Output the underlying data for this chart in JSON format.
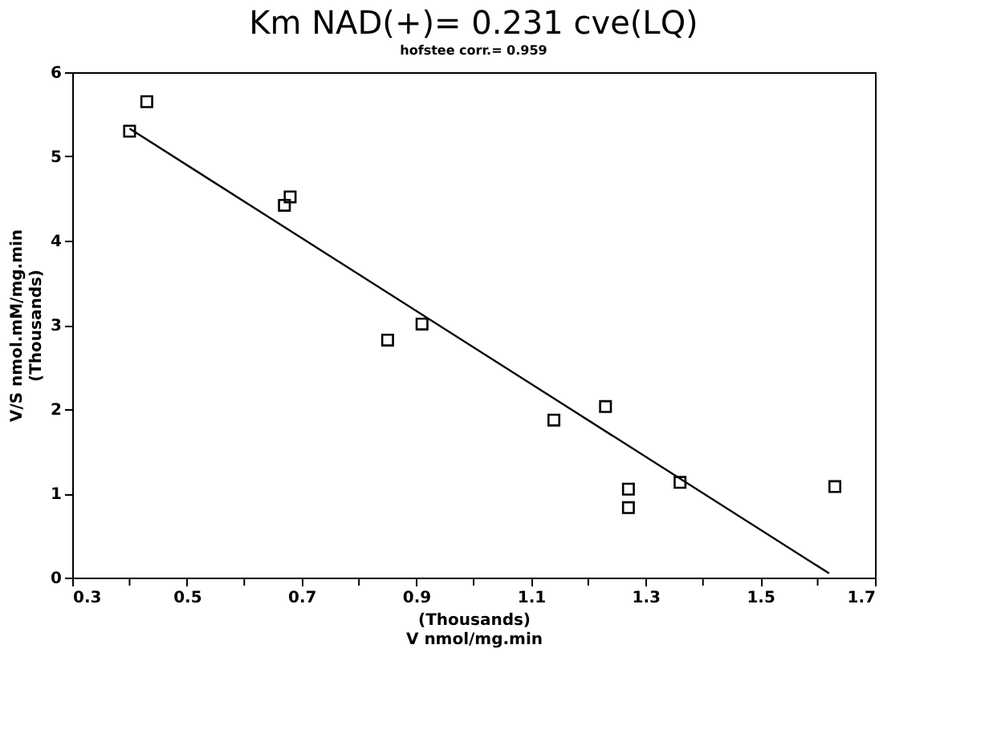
{
  "chart_data": {
    "type": "scatter",
    "title": "Km NAD(+)= 0.231 cve(LQ)",
    "subtitle": "hofstee corr.= 0.959",
    "xlabel": "(Thousands)\nV nmol/mg.min",
    "ylabel": "V/S nmol.mM/mg.min\n(Thousands)",
    "series": [
      {
        "color": "#000000",
        "marker": "square",
        "x": [
          0.4,
          0.43,
          0.67,
          0.68,
          0.85,
          0.91,
          1.14,
          1.23,
          1.27,
          1.27,
          1.36,
          1.63
        ],
        "values": [
          5.3,
          5.65,
          4.42,
          4.52,
          2.82,
          3.01,
          1.87,
          2.03,
          1.05,
          0.83,
          1.13,
          1.08
        ]
      },
      {
        "type": "line",
        "color": "#000000",
        "marker": "none",
        "line_style": "solid",
        "x": [
          0.4,
          1.62
        ],
        "values": [
          5.33,
          0.05
        ]
      }
    ],
    "xlim": [
      0.3,
      1.7
    ],
    "ylim": [
      0,
      6
    ],
    "xticks": [
      0.3,
      {
        "value": 0.4,
        "label": null
      },
      0.5,
      {
        "value": 0.6,
        "label": null
      },
      0.7,
      {
        "value": 0.8,
        "label": null
      },
      0.9,
      {
        "value": 1.0,
        "label": null
      },
      1.1,
      {
        "value": 1.2,
        "label": null
      },
      1.3,
      {
        "value": 1.4,
        "label": null
      },
      1.5,
      {
        "value": 1.6,
        "label": null
      },
      1.7
    ],
    "yticks": [
      0,
      1,
      2,
      3,
      4,
      5,
      6
    ],
    "grid": false
  }
}
